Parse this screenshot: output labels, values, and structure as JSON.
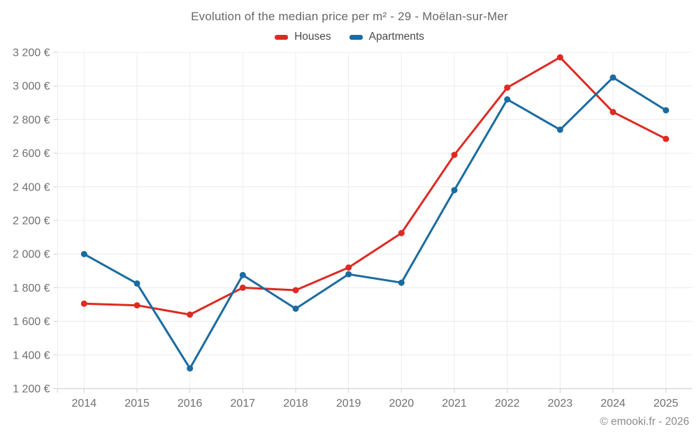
{
  "header": {
    "title": "Evolution of the median price per m² - 29 - Moëlan-sur-Mer"
  },
  "legend": {
    "items": [
      {
        "label": "Houses",
        "color": "#dd2b23"
      },
      {
        "label": "Apartments",
        "color": "#1a6ba0"
      }
    ]
  },
  "footer": {
    "credit": "© emooki.fr - 2026"
  },
  "colors": {
    "houses": "#dd2b23",
    "apartments": "#1a6ba0",
    "gridline": "#ececec",
    "axis_line": "#c9c9c9",
    "tick": "#cfcfcf",
    "axis_text": "#707070"
  },
  "chart_data": {
    "type": "line",
    "title": "Evolution of the median price per m² - 29 - Moëlan-sur-Mer",
    "x": [
      2014,
      2015,
      2016,
      2017,
      2018,
      2019,
      2020,
      2021,
      2022,
      2023,
      2024,
      2025
    ],
    "series": [
      {
        "name": "Houses",
        "color": "#dd2b23",
        "values": [
          1705,
          1695,
          1640,
          1800,
          1785,
          1920,
          2125,
          2590,
          2990,
          3170,
          2845,
          2685
        ]
      },
      {
        "name": "Apartments",
        "color": "#1a6ba0",
        "values": [
          2000,
          1825,
          1320,
          1875,
          1675,
          1880,
          1830,
          2380,
          2920,
          2740,
          3050,
          2855
        ]
      }
    ],
    "xlabel": "",
    "ylabel": "",
    "ylabel_format": "{value} €",
    "ylim": [
      1200,
      3200
    ],
    "ytick_step": 200,
    "grid": true,
    "legend_position": "top",
    "marker_radius": 4.5,
    "line_width": 3
  }
}
